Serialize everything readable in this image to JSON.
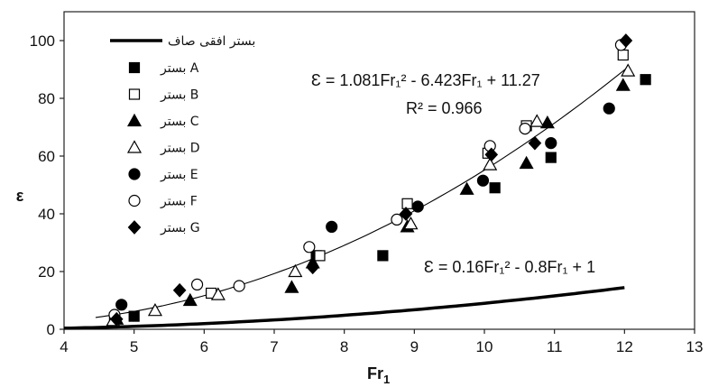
{
  "chart_data": {
    "type": "scatter",
    "xlabel": "Fr",
    "xlabel_sub": "1",
    "ylabel": "ε",
    "xlim": [
      4,
      13
    ],
    "ylim": [
      0,
      110
    ],
    "x_ticks": [
      "4",
      "5",
      "6",
      "7",
      "8",
      "9",
      "10",
      "11",
      "12",
      "13"
    ],
    "y_ticks": [
      "0",
      "20",
      "40",
      "60",
      "80",
      "100"
    ],
    "grid": false,
    "legend_position": "top-left",
    "series": [
      {
        "name": "بستر A",
        "marker": "square-filled",
        "points": [
          [
            4.72,
            4
          ],
          [
            5.0,
            4.5
          ],
          [
            7.6,
            25.5
          ],
          [
            8.55,
            25.5
          ],
          [
            10.15,
            49
          ],
          [
            10.95,
            59.5
          ],
          [
            12.3,
            86.5
          ]
        ]
      },
      {
        "name": "بستر B",
        "marker": "square-open",
        "points": [
          [
            6.1,
            12.5
          ],
          [
            7.65,
            25.5
          ],
          [
            8.9,
            43.5
          ],
          [
            10.05,
            61
          ],
          [
            10.6,
            70.5
          ],
          [
            11.98,
            95
          ]
        ]
      },
      {
        "name": "بستر C",
        "marker": "triangle-filled",
        "points": [
          [
            4.75,
            3.5
          ],
          [
            5.8,
            10
          ],
          [
            7.25,
            14.5
          ],
          [
            7.55,
            23
          ],
          [
            8.9,
            35.5
          ],
          [
            9.75,
            48.5
          ],
          [
            10.6,
            57.5
          ],
          [
            10.9,
            71.5
          ],
          [
            11.98,
            84.5
          ]
        ]
      },
      {
        "name": "بستر D",
        "marker": "triangle-open",
        "points": [
          [
            4.7,
            3
          ],
          [
            5.3,
            6.5
          ],
          [
            6.2,
            12
          ],
          [
            7.3,
            20
          ],
          [
            8.95,
            36.5
          ],
          [
            10.08,
            57
          ],
          [
            10.75,
            72
          ],
          [
            12.05,
            89.5
          ]
        ]
      },
      {
        "name": "بستر E",
        "marker": "circle-filled",
        "points": [
          [
            4.82,
            8.5
          ],
          [
            7.82,
            35.5
          ],
          [
            9.05,
            42.5
          ],
          [
            9.98,
            51.5
          ],
          [
            10.95,
            64.5
          ],
          [
            11.78,
            76.5
          ]
        ]
      },
      {
        "name": "بستر F",
        "marker": "circle-open",
        "points": [
          [
            4.72,
            5
          ],
          [
            5.9,
            15.5
          ],
          [
            6.5,
            15
          ],
          [
            7.5,
            28.5
          ],
          [
            8.75,
            38
          ],
          [
            10.08,
            63.5
          ],
          [
            10.58,
            69.5
          ],
          [
            11.95,
            98.5
          ]
        ]
      },
      {
        "name": "بستر G",
        "marker": "diamond-filled",
        "points": [
          [
            4.75,
            3.5
          ],
          [
            5.65,
            13.5
          ],
          [
            7.55,
            21.5
          ],
          [
            8.88,
            40
          ],
          [
            10.1,
            60.5
          ],
          [
            10.72,
            64.5
          ],
          [
            12.02,
            100
          ]
        ]
      }
    ],
    "fit_curves": [
      {
        "name": "fit",
        "coefficients": [
          1.081,
          -6.423,
          11.27
        ],
        "x_range": [
          4.45,
          12.05
        ],
        "style": "thin"
      },
      {
        "name": "بستر افقی صاف",
        "coefficients": [
          0.16,
          -0.8,
          1
        ],
        "x_range": [
          4.0,
          12.0
        ],
        "style": "thick"
      }
    ],
    "annotations": {
      "fit_equation": "Ɛ = 1.081Fr₁² - 6.423Fr₁ + 11.27",
      "r_squared": "R² = 0.966",
      "flat_equation": "Ɛ = 0.16Fr₁² - 0.8Fr₁ + 1"
    }
  },
  "legend": {
    "line_label": "بستر افقی صاف",
    "series_labels": [
      "بستر A",
      "بستر B",
      "بستر C",
      "بستر D",
      "بستر E",
      "بستر F",
      "بستر G"
    ]
  }
}
